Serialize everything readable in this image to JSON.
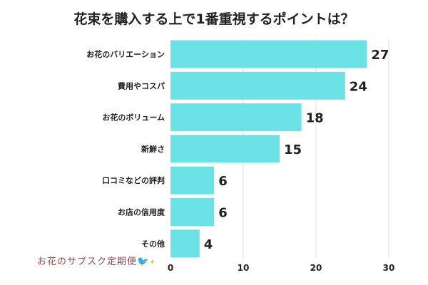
{
  "chart_data": {
    "type": "bar",
    "orientation": "horizontal",
    "title": "花束を購入する上で1番重視するポイントは？",
    "categories": [
      "お花のバリエーション",
      "費用やコスパ",
      "お花のボリューム",
      "新鮮さ",
      "口コミなどの評判",
      "お店の信用度",
      "その他"
    ],
    "values": [
      27,
      24,
      18,
      15,
      6,
      6,
      4
    ],
    "xlim": [
      0,
      30
    ],
    "xticks": [
      0,
      10,
      20,
      30
    ],
    "xlabel": "",
    "ylabel": "",
    "grid": true,
    "bar_color": "#6be3e6"
  },
  "logo": {
    "text": "お花のサブスク定期便"
  }
}
